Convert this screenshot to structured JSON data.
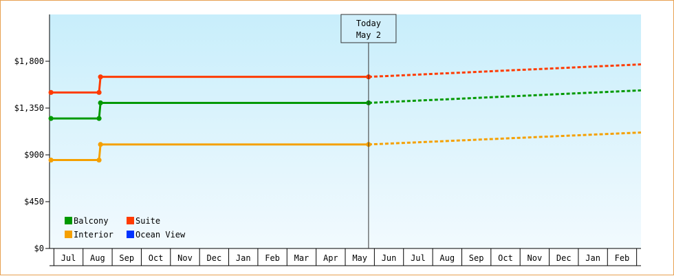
{
  "chart_data": {
    "type": "line",
    "title": "",
    "xlabel": "",
    "ylabel": "",
    "currency_prefix": "$",
    "ylim": [
      0,
      2250
    ],
    "yticks": [
      0,
      450,
      900,
      1350,
      1800
    ],
    "ytick_labels": [
      "$0",
      "$450",
      "$900",
      "$1,350",
      "$1,800"
    ],
    "x_unit": "month",
    "xlim": [
      "2023-06-01",
      "2024-03-10"
    ],
    "months": [
      {
        "label": "Jul",
        "start": "2023-06-13"
      },
      {
        "label": "Aug",
        "start": "2023-07-13"
      },
      {
        "label": "Sep",
        "start": "2023-08-13"
      },
      {
        "label": "Oct",
        "start": "2023-09-13"
      },
      {
        "label": "Nov",
        "start": "2023-10-13"
      },
      {
        "label": "Dec",
        "start": "2023-11-13"
      },
      {
        "label": "Jan",
        "start": "2023-12-13"
      },
      {
        "label": "Feb",
        "start": "2024-01-13"
      },
      {
        "label": "Mar",
        "start": "2024-02-13"
      },
      {
        "label": "Apr",
        "start": "2024-03-13"
      },
      {
        "label": "May",
        "start": "2024-04-13"
      },
      {
        "label": "Jun",
        "start": "2024-05-13"
      },
      {
        "label": "Jul",
        "start": "2024-06-13"
      },
      {
        "label": "Aug",
        "start": "2024-07-13"
      },
      {
        "label": "Sep",
        "start": "2024-08-13"
      },
      {
        "label": "Oct",
        "start": "2024-09-13"
      },
      {
        "label": "Nov",
        "start": "2024-10-13"
      },
      {
        "label": "Dec",
        "start": "2024-11-13"
      },
      {
        "label": "Jan",
        "start": "2024-12-13"
      },
      {
        "label": "Feb",
        "start": "2025-01-13"
      }
    ],
    "xlim_months": [
      -0.15,
      20.15
    ],
    "today": {
      "label_line1": "Today",
      "label_line2": "May 2",
      "x": 10.8
    },
    "grid": false,
    "legend_position": "bottom-left",
    "series": [
      {
        "name": "Suite",
        "color": "#ff3b00",
        "actual": [
          [
            -0.1,
            1500
          ],
          [
            1.55,
            1500
          ],
          [
            1.6,
            1650
          ],
          [
            10.8,
            1650
          ]
        ],
        "forecast": [
          [
            10.8,
            1650
          ],
          [
            20.15,
            1770
          ]
        ]
      },
      {
        "name": "Balcony",
        "color": "#009900",
        "actual": [
          [
            -0.1,
            1250
          ],
          [
            1.55,
            1250
          ],
          [
            1.6,
            1400
          ],
          [
            10.8,
            1400
          ]
        ],
        "forecast": [
          [
            10.8,
            1400
          ],
          [
            20.15,
            1520
          ]
        ]
      },
      {
        "name": "Interior",
        "color": "#f5a000",
        "actual": [
          [
            -0.1,
            850
          ],
          [
            1.55,
            850
          ],
          [
            1.6,
            1000
          ],
          [
            10.8,
            1000
          ]
        ],
        "forecast": [
          [
            10.8,
            1000
          ],
          [
            20.15,
            1115
          ]
        ]
      },
      {
        "name": "Ocean View",
        "color": "#0033ff",
        "actual": [],
        "forecast": []
      }
    ],
    "legend": [
      {
        "name": "Balcony",
        "color": "#009900"
      },
      {
        "name": "Suite",
        "color": "#ff3b00"
      },
      {
        "name": "Interior",
        "color": "#f5a000"
      },
      {
        "name": "Ocean View",
        "color": "#0033ff"
      }
    ]
  }
}
